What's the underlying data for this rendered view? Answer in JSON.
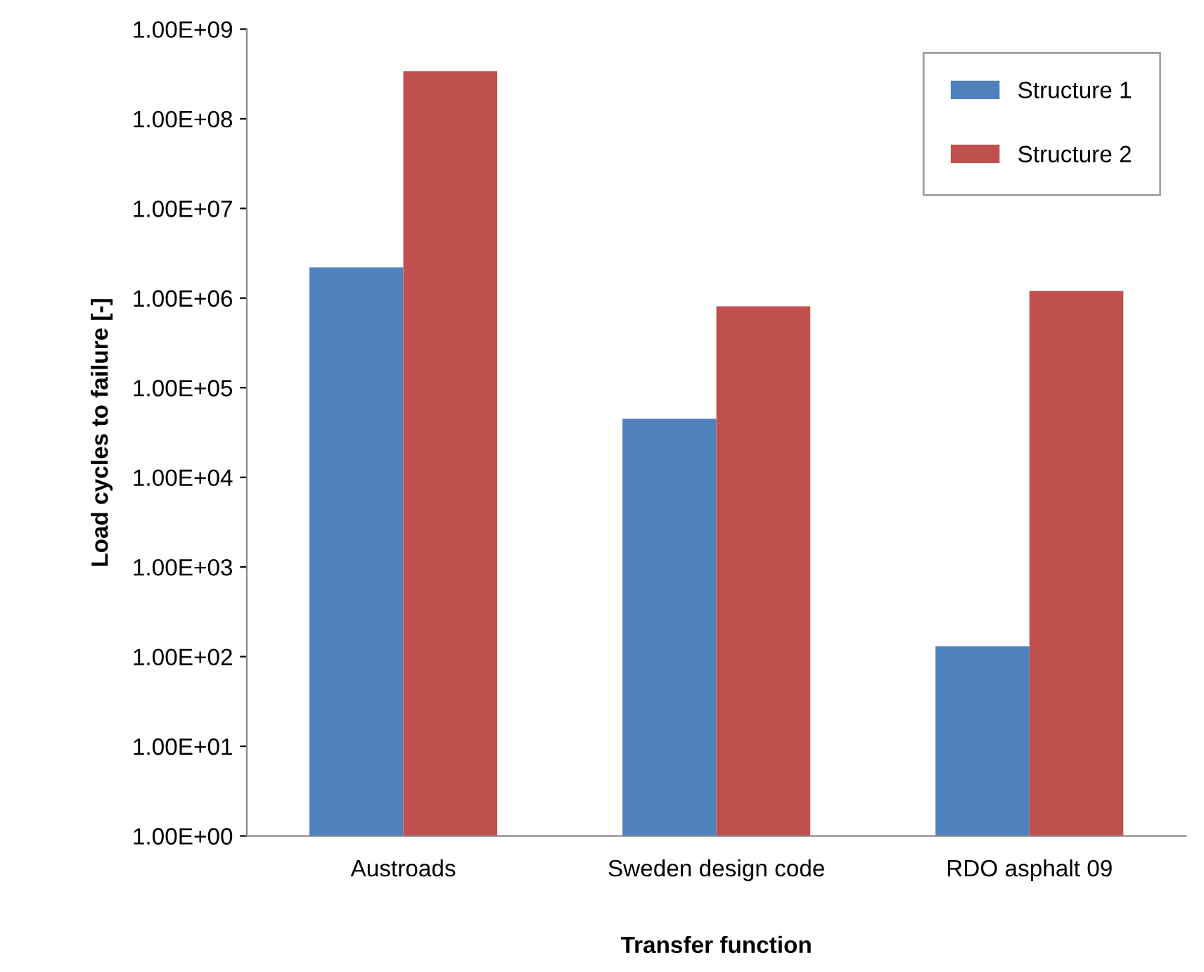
{
  "chart_data": {
    "type": "bar",
    "xlabel": "Transfer function",
    "ylabel": "Load cycles to failure [-]",
    "categories": [
      "Austroads",
      "Sweden design code",
      "RDO asphalt 09"
    ],
    "series": [
      {
        "name": "Structure 1",
        "color": "#4f81bd",
        "values": [
          2200000,
          45000,
          130
        ]
      },
      {
        "name": "Structure 2",
        "color": "#c0504d",
        "values": [
          340000000,
          810000,
          1200000
        ]
      }
    ],
    "log": "y",
    "ylim": [
      1,
      1000000000
    ],
    "yticks": [
      {
        "value": 1,
        "label": "1.00E+00"
      },
      {
        "value": 10,
        "label": "1.00E+01"
      },
      {
        "value": 100,
        "label": "1.00E+02"
      },
      {
        "value": 1000,
        "label": "1.00E+03"
      },
      {
        "value": 10000,
        "label": "1.00E+04"
      },
      {
        "value": 100000,
        "label": "1.00E+05"
      },
      {
        "value": 1000000,
        "label": "1.00E+06"
      },
      {
        "value": 10000000,
        "label": "1.00E+07"
      },
      {
        "value": 100000000,
        "label": "1.00E+08"
      },
      {
        "value": 1000000000,
        "label": "1.00E+09"
      }
    ],
    "grid": false,
    "legend": "top right"
  }
}
